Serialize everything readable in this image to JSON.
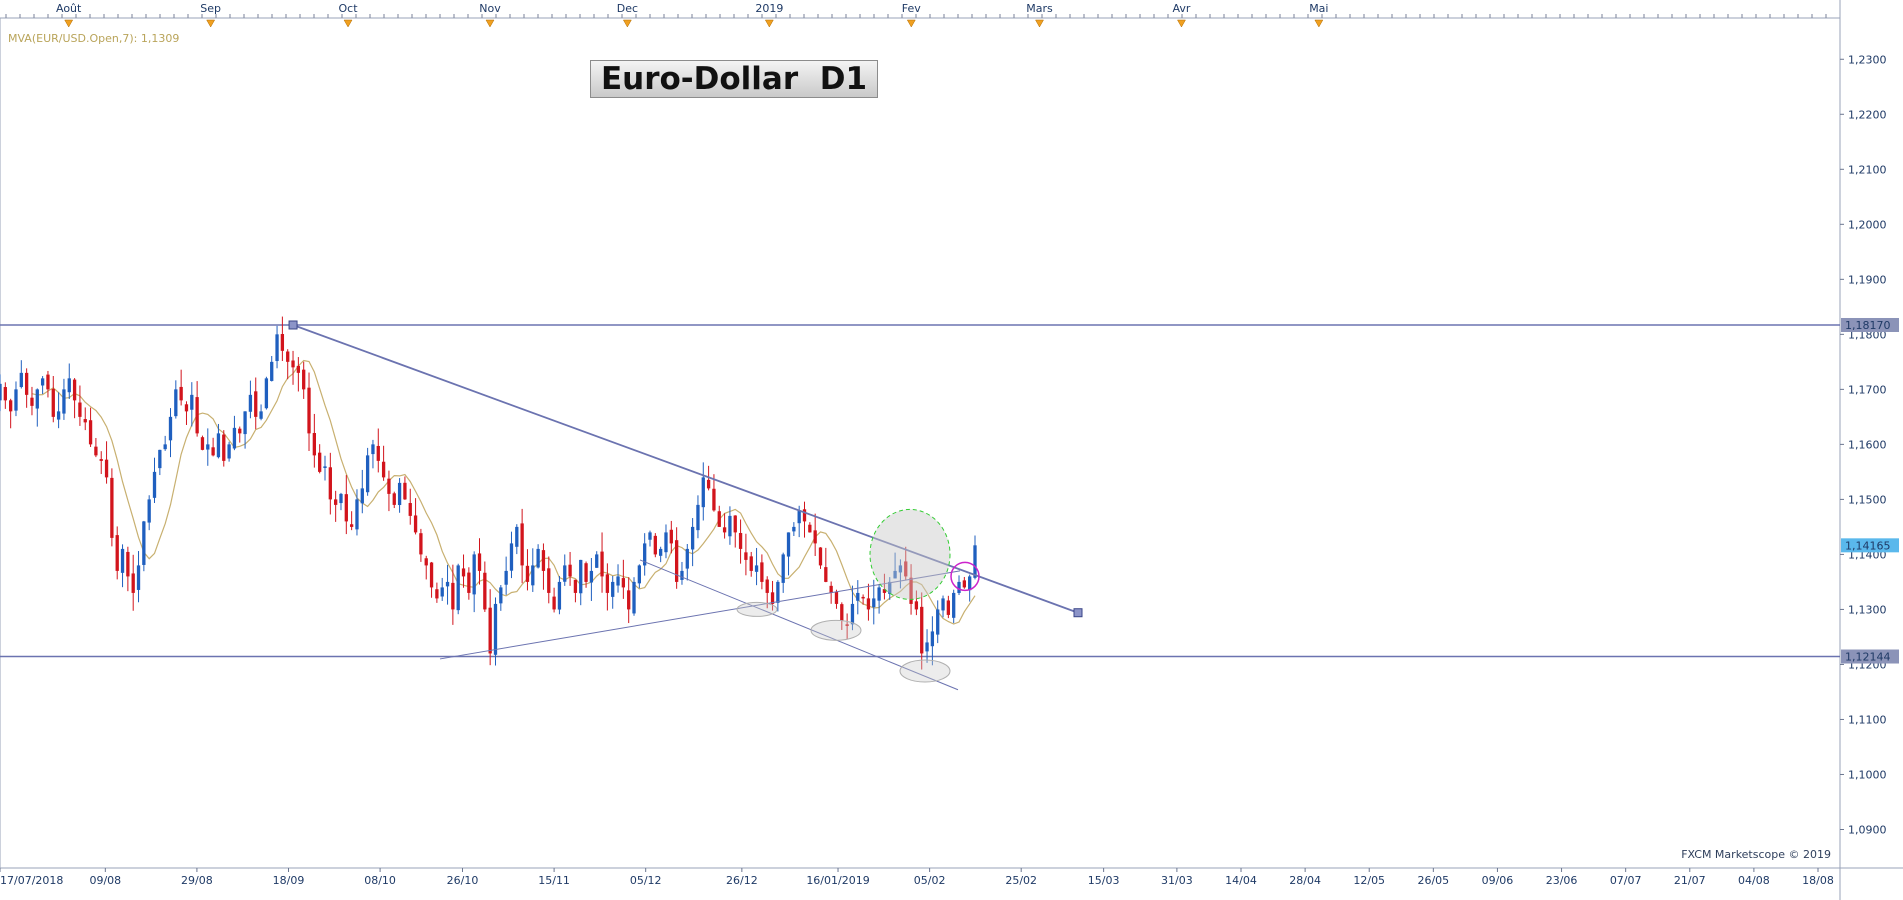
{
  "title": "Euro-Dollar  D1",
  "indicator_label": "MVA(EUR/USD.Open,7): 1,1309",
  "watermark": "FXCM Marketscope © 2019",
  "colors": {
    "bull": "#1f5fbf",
    "bear": "#d2141c",
    "ma": "#c8b070",
    "trend": "#6b73b0",
    "grid": "#e2e2e2",
    "axis_text": "#1f3a66",
    "price_box": "#8b93b8",
    "current_box": "#5ab8ec"
  },
  "chart_data": {
    "type": "candlestick",
    "instrument": "EUR/USD",
    "timeframe": "D1",
    "ylim": [
      1.083,
      1.2375
    ],
    "x_range": [
      "2018-07-17",
      "2019-08-18"
    ],
    "y_ticks": [
      "1,2300",
      "1,2200",
      "1,2100",
      "1,2000",
      "1,1900",
      "1,1800",
      "1,1700",
      "1,1600",
      "1,1500",
      "1,1400",
      "1,1300",
      "1,1200",
      "1,1100",
      "1,1000",
      "1,0900"
    ],
    "x_ticks": [
      "17/07/2018",
      "09/08",
      "29/08",
      "18/09",
      "08/10",
      "26/10",
      "15/11",
      "05/12",
      "26/12",
      "16/01/2019",
      "05/02",
      "25/02",
      "15/03",
      "31/03",
      "14/04",
      "28/04",
      "12/05",
      "26/05",
      "09/06",
      "23/06",
      "07/07",
      "21/07",
      "04/08",
      "18/08"
    ],
    "months": [
      "Août",
      "Sep",
      "Oct",
      "Nov",
      "Dec",
      "2019",
      "Fev",
      "Mars",
      "Avr",
      "Mai"
    ],
    "price_labels": [
      {
        "label": "1,18170",
        "value": 1.1817,
        "kind": "level"
      },
      {
        "label": "1,14165",
        "value": 1.14165,
        "kind": "current"
      },
      {
        "label": "1,12144",
        "value": 1.12144,
        "kind": "level"
      }
    ],
    "horizontal_levels": [
      1.1817,
      1.12144
    ],
    "closes": [
      1.171,
      1.168,
      1.166,
      1.17,
      1.173,
      1.169,
      1.167,
      1.17,
      1.172,
      1.17,
      1.165,
      1.166,
      1.17,
      1.172,
      1.168,
      1.165,
      1.164,
      1.16,
      1.158,
      1.157,
      1.154,
      1.143,
      1.137,
      1.141,
      1.136,
      1.133,
      1.138,
      1.146,
      1.15,
      1.155,
      1.159,
      1.16,
      1.165,
      1.17,
      1.168,
      1.166,
      1.169,
      1.162,
      1.159,
      1.16,
      1.158,
      1.162,
      1.157,
      1.16,
      1.163,
      1.162,
      1.166,
      1.169,
      1.165,
      1.166,
      1.172,
      1.175,
      1.18,
      1.177,
      1.175,
      1.174,
      1.173,
      1.17,
      1.162,
      1.158,
      1.155,
      1.156,
      1.15,
      1.149,
      1.151,
      1.146,
      1.145,
      1.15,
      1.152,
      1.158,
      1.16,
      1.157,
      1.154,
      1.151,
      1.149,
      1.153,
      1.15,
      1.147,
      1.144,
      1.14,
      1.138,
      1.134,
      1.132,
      1.134,
      1.135,
      1.13,
      1.138,
      1.136,
      1.133,
      1.14,
      1.137,
      1.13,
      1.122,
      1.131,
      1.134,
      1.137,
      1.142,
      1.145,
      1.138,
      1.135,
      1.138,
      1.141,
      1.137,
      1.133,
      1.13,
      1.135,
      1.138,
      1.136,
      1.133,
      1.139,
      1.135,
      1.137,
      1.14,
      1.136,
      1.133,
      1.135,
      1.136,
      1.134,
      1.13,
      1.135,
      1.138,
      1.142,
      1.144,
      1.14,
      1.141,
      1.144,
      1.142,
      1.135,
      1.137,
      1.141,
      1.145,
      1.149,
      1.154,
      1.152,
      1.148,
      1.145,
      1.144,
      1.147,
      1.144,
      1.141,
      1.139,
      1.137,
      1.138,
      1.135,
      1.133,
      1.131,
      1.135,
      1.14,
      1.144,
      1.145,
      1.148,
      1.146,
      1.144,
      1.142,
      1.138,
      1.135,
      1.133,
      1.131,
      1.128,
      1.127,
      1.131,
      1.133,
      1.132,
      1.13,
      1.132,
      1.134,
      1.133,
      1.135,
      1.137,
      1.138,
      1.136,
      1.131,
      1.13,
      1.122,
      1.124,
      1.126,
      1.13,
      1.132,
      1.129,
      1.133,
      1.135,
      1.134,
      1.136,
      1.14165
    ]
  }
}
